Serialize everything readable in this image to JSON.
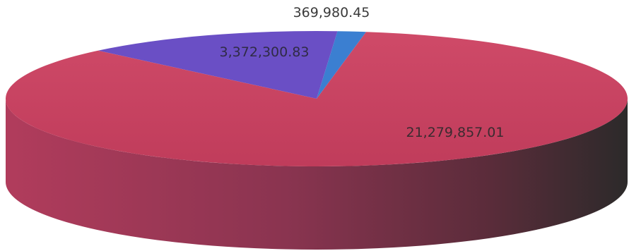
{
  "chart_data": {
    "type": "pie",
    "title": "",
    "values": [
      21279857.01,
      3372300.83,
      369980.45
    ],
    "labels": [
      "21,279,857.01",
      "3,372,300.83",
      "369,980.45"
    ],
    "colors": [
      "#c5405f",
      "#6a4fc5",
      "#3b7fd1"
    ]
  }
}
